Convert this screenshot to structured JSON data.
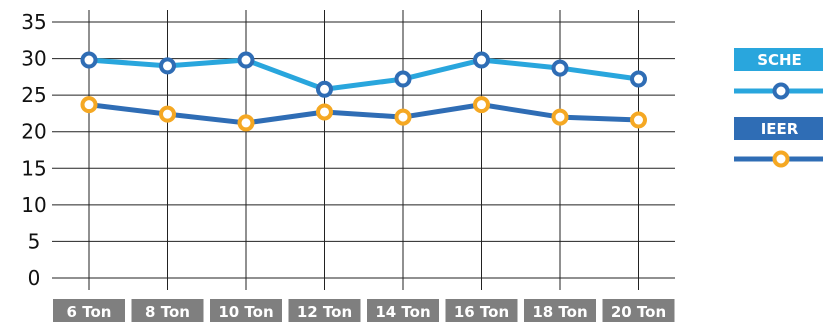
{
  "chart_data": {
    "type": "line",
    "categories": [
      "6 Ton",
      "8 Ton",
      "10 Ton",
      "12 Ton",
      "14 Ton",
      "16 Ton",
      "18 Ton",
      "20 Ton"
    ],
    "y_ticks": [
      "0",
      "5",
      "10",
      "15",
      "20",
      "25",
      "30",
      "35"
    ],
    "ylim": [
      0,
      35
    ],
    "grid": true,
    "legend_position": "right",
    "series": [
      {
        "name": "SCHE",
        "values": [
          29.8,
          29.0,
          29.8,
          25.8,
          27.2,
          29.8,
          28.7,
          27.2
        ],
        "line_color": "#29a6dd",
        "marker_color": "#2f6db5"
      },
      {
        "name": "IEER",
        "values": [
          23.7,
          22.4,
          21.2,
          22.7,
          22.0,
          23.7,
          22.0,
          21.6
        ],
        "line_color": "#2f6db5",
        "marker_color": "#f5a823"
      }
    ]
  },
  "colors": {
    "tick_label_bg": "#7f7f7f",
    "grid": "#222222"
  }
}
